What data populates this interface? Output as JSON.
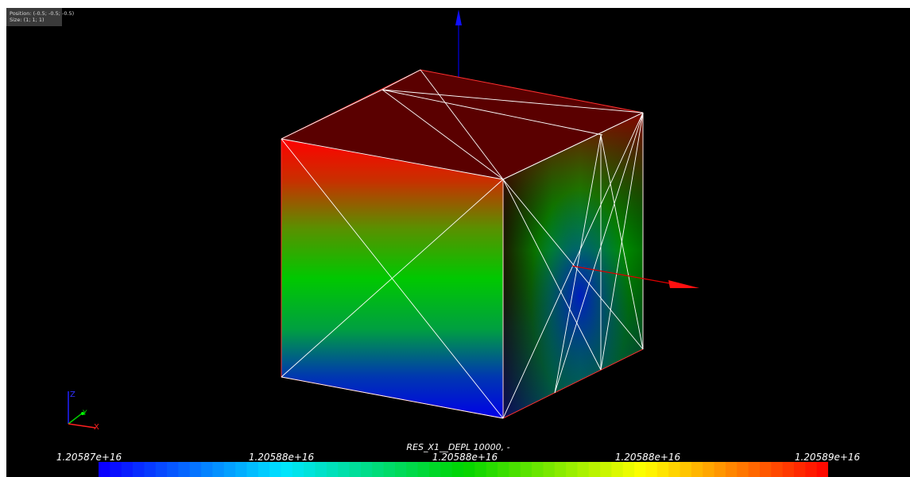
{
  "info": {
    "position": "Position: (-0.5; -0.5; -0.5)",
    "size": "Size: (1; 1; 1)"
  },
  "triad": {
    "z_label": "Z",
    "y_label": "Y",
    "x_label": "X"
  },
  "colorbar": {
    "title": "RES_X1__DEPL 10000, -",
    "ticks": [
      "1.20587e+16",
      "1.20588e+16",
      "1.20588e+16",
      "1.20588e+16",
      "1.20589e+16"
    ],
    "colors": [
      "#0a00ff",
      "#00e5ff",
      "#00d400",
      "#ffff00",
      "#ff0a00"
    ]
  },
  "colors": {
    "background": "#000000",
    "top_face": "#5a0000",
    "mesh_lines": "#ffffff",
    "axis_x": "#e00000",
    "axis_z": "#0000e0"
  }
}
